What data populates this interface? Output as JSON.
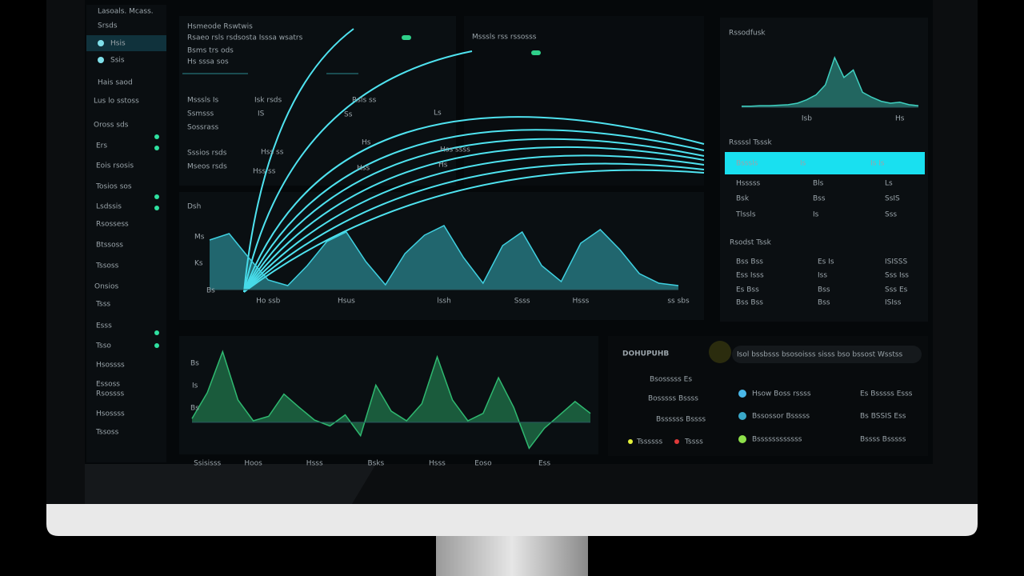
{
  "sidebar": {
    "brand": "Lasoals. Mcass.",
    "nav": [
      "Srsds",
      "Hsis",
      "Ssis"
    ],
    "sub": [
      "Hais saod",
      "Lus lo sstoss"
    ],
    "heading": "Oross sds",
    "items": [
      "Ers",
      "Eois rsosis",
      "Tosios sos",
      "Lsdssis",
      "Rsossess",
      "Btssoss",
      "Tssoss"
    ],
    "heading2": "Onsios",
    "items2": [
      "Tsss",
      "Esss",
      "Tsso",
      "Hsossss",
      "Essoss",
      "Rsossss",
      "Hsossss",
      "Tssoss"
    ]
  },
  "fan_panel": {
    "title": "Hsmeode Rswtwis",
    "subtitle": "Rsaeo rsls rsdsosta Isssa wsatrs",
    "lines": [
      "Bsms trs ods",
      "Hs sssa sos"
    ],
    "labels": [
      "Msssls Is",
      "Ssmsss",
      "Sossrass",
      "Sssios rsds",
      "Mseos rsds"
    ],
    "side": [
      "Isk rsds",
      "IS"
    ],
    "notes": [
      "Rsls ss",
      "Ss",
      "Ls",
      "Hss ss",
      "Hs",
      "Hss ss",
      "Hss",
      "Hss ssss",
      "Hs"
    ],
    "heading": "Msssls rss rssosss"
  },
  "area_labels": {
    "main": [
      "Ms",
      "Ks",
      "Bs"
    ],
    "bottom": [
      "Bs",
      "Is",
      "Bs"
    ]
  },
  "chart_data": [
    {
      "type": "area",
      "title": "Dsh",
      "color": "#3fd0e0",
      "ylim": [
        0,
        100
      ],
      "categories": [
        null,
        null,
        null,
        "Ho ssb",
        null,
        null,
        null,
        "Hsus",
        null,
        null,
        null,
        null,
        "lssh",
        null,
        null,
        null,
        "Ssss",
        null,
        null,
        "Hsss",
        null,
        null,
        null,
        null,
        "ss sbs"
      ],
      "values": [
        62,
        70,
        40,
        12,
        5,
        30,
        60,
        72,
        35,
        6,
        45,
        68,
        80,
        40,
        8,
        55,
        72,
        30,
        10,
        58,
        75,
        50,
        20,
        8,
        5
      ]
    },
    {
      "type": "area",
      "color": "#2fb870",
      "ylim": [
        -40,
        100
      ],
      "categories": [
        null,
        "Ssisisss",
        null,
        null,
        "Hoos",
        null,
        null,
        null,
        "Hsss",
        null,
        null,
        null,
        "Bsks",
        null,
        null,
        null,
        "Hsss",
        null,
        null,
        "Eoso",
        null,
        null,
        null,
        "Ess",
        null,
        null,
        null
      ],
      "values": [
        5,
        40,
        95,
        30,
        2,
        8,
        38,
        20,
        3,
        -5,
        10,
        -18,
        50,
        15,
        2,
        25,
        88,
        30,
        2,
        12,
        60,
        20,
        -35,
        -8,
        10,
        28,
        12
      ]
    },
    {
      "type": "area",
      "title": "Rssodfusk",
      "color": "#3fd0c0",
      "ylim": [
        0,
        100
      ],
      "categories": [
        null,
        null,
        null,
        null,
        null,
        null,
        null,
        "Isb",
        null,
        null,
        null,
        null,
        null,
        null,
        null,
        null,
        null,
        "Hs",
        null,
        null
      ],
      "values": [
        2,
        2,
        3,
        3,
        4,
        5,
        8,
        15,
        25,
        45,
        100,
        60,
        75,
        30,
        20,
        12,
        8,
        10,
        5,
        3
      ]
    }
  ],
  "table1": {
    "title": "Rssssl Tsssk",
    "header": [
      "Bsssls",
      "Is",
      "Is Is"
    ],
    "rows": [
      [
        "Hsssss",
        "Bls",
        "Ls"
      ],
      [
        "Bsk",
        "Bss",
        "SsIS"
      ],
      [
        "Tlssls",
        "Is",
        "Sss"
      ]
    ]
  },
  "table2": {
    "title": "Rsodst Tssk",
    "rows": [
      [
        "Bss Bss",
        "Es Is",
        "ISISSS"
      ],
      [
        "Ess Isss",
        "Iss",
        "Sss Iss"
      ],
      [
        "Es Bss",
        "Bss",
        "Sss Es"
      ],
      [
        "Bss Bss",
        "Bss",
        "ISIss"
      ]
    ]
  },
  "summary": {
    "title": "DOHUPUHB",
    "search": "Isol bssbsss bsosoisss sisss bso bssost Wsstss",
    "faded": [
      "Bsosssss Es",
      "Bosssss Bssss",
      "Bssssss Bssss"
    ],
    "legend": [
      "Tssssss",
      "Tssss"
    ],
    "rows": [
      [
        "Hsow Boss rssss",
        "Es Bsssss Esss"
      ],
      [
        "Bssossor Bsssss",
        "Bs BSSIS Ess"
      ],
      [
        "Bssssssssssss",
        "Bssss Bsssss"
      ]
    ]
  }
}
